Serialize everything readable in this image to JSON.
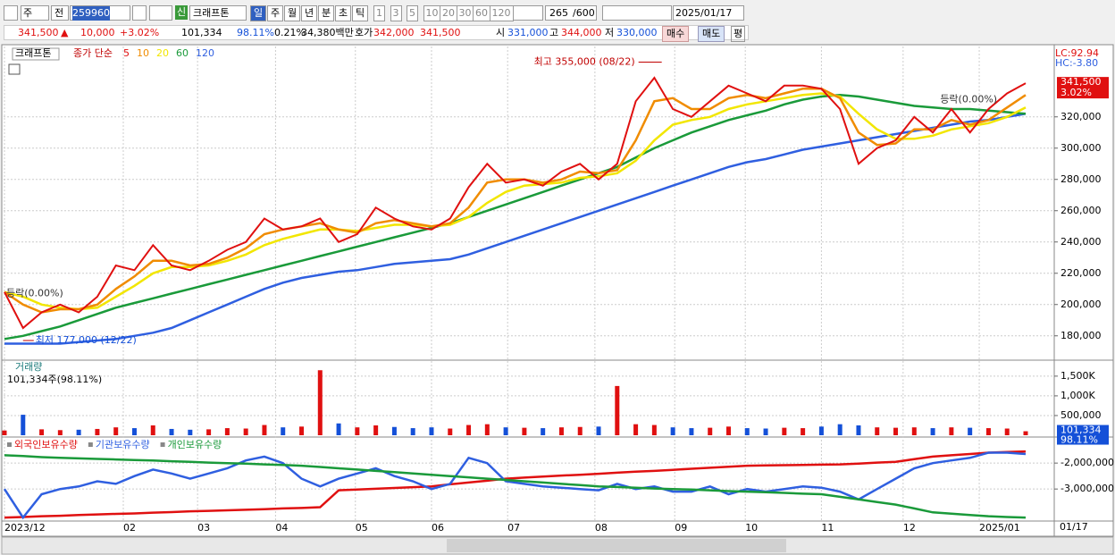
{
  "toolbar": {
    "period": "주",
    "prev": "전",
    "code": "259960",
    "badge": "신",
    "name": "크래프톤",
    "intervals": [
      "일",
      "주",
      "월",
      "년",
      "분",
      "초",
      "틱"
    ],
    "minutes": [
      "1",
      "3",
      "5",
      "10",
      "20",
      "30",
      "60",
      "120"
    ],
    "count": "265",
    "max": "/600",
    "date": "2025/01/17"
  },
  "quote": {
    "price": "341,500",
    "arrow": "▲",
    "change": "10,000",
    "rate": "+3.02%",
    "volume": "101,334",
    "volume_ratio": "98.11%",
    "turnover": "0.21%",
    "amount": "34,380백만",
    "ask_label": "호가",
    "ask": "342,000",
    "bid": "341,500",
    "open_label": "시",
    "open": "331,000",
    "high_label": "고",
    "high": "344,000",
    "low_label": "저",
    "low": "330,000",
    "buy": "매수",
    "sell": "매도",
    "avg": "평"
  },
  "chart_data": {
    "type": "line",
    "title": "크래프톤",
    "legend_label": "종가 단순",
    "x": [
      0,
      1,
      2,
      3,
      4,
      5,
      6,
      7,
      8,
      9,
      10,
      11,
      12,
      13,
      14,
      15,
      16,
      17,
      18,
      19,
      20,
      21,
      22,
      23,
      24,
      25,
      26,
      27,
      28,
      29,
      30,
      31,
      32,
      33,
      34,
      35,
      36,
      37,
      38,
      39,
      40,
      41,
      42,
      43,
      44,
      45,
      46,
      47,
      48,
      49,
      50,
      51,
      52,
      53,
      54,
      55
    ],
    "xlim": [
      0,
      55
    ],
    "xticks": [
      {
        "value": 0,
        "label": "2023/12"
      },
      {
        "value": 6.4,
        "label": "02"
      },
      {
        "value": 10.4,
        "label": "03"
      },
      {
        "value": 14.6,
        "label": "04"
      },
      {
        "value": 18.9,
        "label": "05"
      },
      {
        "value": 23,
        "label": "06"
      },
      {
        "value": 27.1,
        "label": "07"
      },
      {
        "value": 31.8,
        "label": "08"
      },
      {
        "value": 36.1,
        "label": "09"
      },
      {
        "value": 39.9,
        "label": "10"
      },
      {
        "value": 44,
        "label": "11"
      },
      {
        "value": 48.4,
        "label": "12"
      },
      {
        "value": 52.5,
        "label": "2025/01"
      }
    ],
    "last_date_label": "01/17",
    "ylim": [
      165000,
      365000
    ],
    "yticks": [
      {
        "value": 180000,
        "label": "180,000"
      },
      {
        "value": 200000,
        "label": "200,000"
      },
      {
        "value": 220000,
        "label": "220,000"
      },
      {
        "value": 240000,
        "label": "240,000"
      },
      {
        "value": 260000,
        "label": "260,000"
      },
      {
        "value": 280000,
        "label": "280,000"
      },
      {
        "value": 300000,
        "label": "300,000"
      },
      {
        "value": 320000,
        "label": "320,000"
      }
    ],
    "grid": true,
    "series": [
      {
        "name": "5",
        "color": "#e01010",
        "values": [
          208000,
          185000,
          195000,
          200000,
          195000,
          205000,
          225000,
          222000,
          238000,
          225000,
          222000,
          228000,
          235000,
          240000,
          255000,
          248000,
          250000,
          255000,
          240000,
          245000,
          262000,
          255000,
          250000,
          248000,
          255000,
          275000,
          290000,
          278000,
          280000,
          276000,
          285000,
          290000,
          280000,
          290000,
          330000,
          345000,
          325000,
          320000,
          330000,
          340000,
          335000,
          330000,
          340000,
          340000,
          338000,
          325000,
          290000,
          300000,
          305000,
          320000,
          310000,
          325000,
          310000,
          325000,
          335000,
          341500
        ]
      },
      {
        "name": "10",
        "color": "#f08c00",
        "values": [
          208000,
          200000,
          195000,
          197000,
          197000,
          200000,
          210000,
          218000,
          228000,
          228000,
          225000,
          226000,
          230000,
          236000,
          245000,
          248000,
          250000,
          252000,
          248000,
          246000,
          252000,
          254000,
          252000,
          250000,
          252000,
          262000,
          278000,
          280000,
          280000,
          278000,
          280000,
          285000,
          284000,
          286000,
          305000,
          330000,
          332000,
          325000,
          325000,
          332000,
          334000,
          332000,
          335000,
          338000,
          338000,
          332000,
          310000,
          302000,
          303000,
          312000,
          312000,
          318000,
          315000,
          318000,
          326000,
          334000
        ]
      },
      {
        "name": "20",
        "color": "#f2e600",
        "values": [
          208000,
          205000,
          200000,
          198000,
          197000,
          198000,
          205000,
          212000,
          220000,
          224000,
          224000,
          225000,
          228000,
          232000,
          238000,
          242000,
          245000,
          248000,
          248000,
          247000,
          249000,
          251000,
          251000,
          250000,
          251000,
          256000,
          265000,
          272000,
          276000,
          277000,
          278000,
          281000,
          282000,
          284000,
          292000,
          305000,
          315000,
          318000,
          320000,
          325000,
          328000,
          330000,
          332000,
          334000,
          335000,
          333000,
          322000,
          312000,
          306000,
          306000,
          308000,
          312000,
          314000,
          316000,
          320000,
          326000
        ]
      },
      {
        "name": "60",
        "color": "#1a9a3a",
        "values": [
          178000,
          180000,
          183000,
          186000,
          190000,
          194000,
          198000,
          201000,
          204000,
          207000,
          210000,
          213000,
          216000,
          219000,
          222000,
          225000,
          228000,
          231000,
          234000,
          237000,
          240000,
          243000,
          246000,
          249000,
          252000,
          256000,
          260000,
          264000,
          268000,
          272000,
          276000,
          280000,
          284000,
          288000,
          294000,
          300000,
          305000,
          310000,
          314000,
          318000,
          321000,
          324000,
          328000,
          331000,
          333000,
          334000,
          333000,
          331000,
          329000,
          327000,
          326000,
          325000,
          325000,
          324000,
          323000,
          322000
        ]
      },
      {
        "name": "120",
        "color": "#2f5fe0",
        "values": [
          175000,
          175000,
          175000,
          175000,
          176000,
          177000,
          178000,
          180000,
          182000,
          185000,
          190000,
          195000,
          200000,
          205000,
          210000,
          214000,
          217000,
          219000,
          221000,
          222000,
          224000,
          226000,
          227000,
          228000,
          229000,
          232000,
          236000,
          240000,
          244000,
          248000,
          252000,
          256000,
          260000,
          264000,
          268000,
          272000,
          276000,
          280000,
          284000,
          288000,
          291000,
          293000,
          296000,
          299000,
          301000,
          303000,
          305000,
          307000,
          309000,
          311000,
          313000,
          315000,
          317000,
          318000,
          320000,
          322000
        ]
      }
    ],
    "annotations": [
      {
        "text": "최고 355,000 (08/22)",
        "x": 35.4,
        "y": 355000
      },
      {
        "text": "최저 177,000 (12/22)",
        "x": 1,
        "y": 177000
      }
    ],
    "markers": [
      {
        "text": "등락(0.00%)",
        "x": 0,
        "y": 207000
      },
      {
        "text": "등락(0.00%)",
        "x": 50.3,
        "y": 331000
      }
    ],
    "side": {
      "lc": "LC:92.94",
      "hc": "HC:-3.80",
      "last_price": "341,500",
      "last_change": "3.02%"
    },
    "volume": {
      "name": "거래량",
      "label": "101,334주(98.11%)",
      "up_color": "#e01010",
      "down_color": "#1450d8",
      "values": [
        120000,
        520000,
        150000,
        130000,
        140000,
        160000,
        200000,
        180000,
        250000,
        160000,
        140000,
        150000,
        180000,
        170000,
        260000,
        200000,
        220000,
        1650000,
        300000,
        200000,
        250000,
        210000,
        180000,
        200000,
        170000,
        260000,
        280000,
        200000,
        190000,
        180000,
        200000,
        210000,
        220000,
        1250000,
        280000,
        260000,
        200000,
        180000,
        190000,
        220000,
        180000,
        170000,
        190000,
        180000,
        220000,
        280000,
        250000,
        200000,
        190000,
        200000,
        180000,
        200000,
        190000,
        180000,
        170000,
        101334
      ],
      "ylim": [
        0,
        1860000
      ],
      "yticks": [
        {
          "value": 500000,
          "label": "500,000"
        },
        {
          "value": 1000000,
          "label": "1,000K"
        },
        {
          "value": 1500000,
          "label": "1,500K"
        }
      ],
      "last_label": "101,334",
      "last_pct": "98.11%"
    },
    "holdings": {
      "ylim": [
        -4200000,
        -1030000
      ],
      "yticks": [
        {
          "value": -3000000,
          "label": "-3,000,000"
        },
        {
          "value": -2000000,
          "label": "-2,000,000"
        }
      ],
      "series": [
        {
          "name": "외국인보유수량",
          "color": "#e01010",
          "values": [
            -4100000,
            -4080000,
            -4050000,
            -4030000,
            -4000000,
            -3980000,
            -3960000,
            -3940000,
            -3910000,
            -3890000,
            -3860000,
            -3840000,
            -3820000,
            -3800000,
            -3780000,
            -3750000,
            -3730000,
            -3700000,
            -3050000,
            -3020000,
            -2990000,
            -2960000,
            -2930000,
            -2900000,
            -2820000,
            -2750000,
            -2680000,
            -2600000,
            -2560000,
            -2520000,
            -2480000,
            -2450000,
            -2410000,
            -2370000,
            -2330000,
            -2300000,
            -2260000,
            -2220000,
            -2180000,
            -2140000,
            -2100000,
            -2090000,
            -2080000,
            -2070000,
            -2060000,
            -2050000,
            -2020000,
            -1980000,
            -1950000,
            -1850000,
            -1750000,
            -1700000,
            -1650000,
            -1600000,
            -1570000,
            -1550000
          ]
        },
        {
          "name": "기관보유수량",
          "color": "#2f5fe0",
          "values": [
            -3000000,
            -4100000,
            -3200000,
            -3000000,
            -2900000,
            -2700000,
            -2800000,
            -2500000,
            -2250000,
            -2400000,
            -2600000,
            -2400000,
            -2200000,
            -1900000,
            -1750000,
            -2000000,
            -2600000,
            -2900000,
            -2600000,
            -2400000,
            -2200000,
            -2500000,
            -2700000,
            -3000000,
            -2800000,
            -1800000,
            -2000000,
            -2700000,
            -2800000,
            -2900000,
            -2950000,
            -3000000,
            -3050000,
            -2800000,
            -3000000,
            -2900000,
            -3100000,
            -3100000,
            -2900000,
            -3200000,
            -3000000,
            -3100000,
            -3000000,
            -2900000,
            -2950000,
            -3100000,
            -3400000,
            -3000000,
            -2600000,
            -2200000,
            -2000000,
            -1900000,
            -1800000,
            -1600000,
            -1600000,
            -1650000
          ]
        },
        {
          "name": "개인보유수량",
          "color": "#1a9a3a",
          "values": [
            -1700000,
            -1730000,
            -1770000,
            -1800000,
            -1820000,
            -1840000,
            -1860000,
            -1880000,
            -1900000,
            -1930000,
            -1950000,
            -1980000,
            -2000000,
            -2020000,
            -2050000,
            -2070000,
            -2100000,
            -2150000,
            -2200000,
            -2250000,
            -2300000,
            -2350000,
            -2400000,
            -2450000,
            -2500000,
            -2550000,
            -2600000,
            -2650000,
            -2700000,
            -2750000,
            -2800000,
            -2850000,
            -2900000,
            -2920000,
            -2950000,
            -2980000,
            -3000000,
            -3020000,
            -3050000,
            -3080000,
            -3100000,
            -3120000,
            -3150000,
            -3180000,
            -3200000,
            -3300000,
            -3400000,
            -3500000,
            -3600000,
            -3750000,
            -3900000,
            -3950000,
            -4000000,
            -4050000,
            -4080000,
            -4100000
          ]
        }
      ]
    }
  }
}
